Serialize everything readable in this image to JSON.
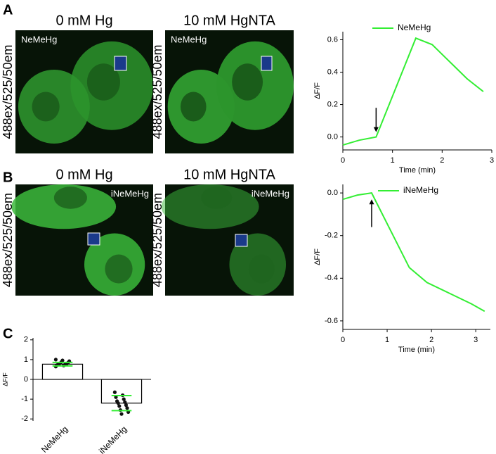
{
  "panels": [
    {
      "letter": "A",
      "images": [
        {
          "title": "0 mM Hg",
          "channel": "488ex/525/50em",
          "tag": "NeMeHg"
        },
        {
          "title": "10 mM HgNTA",
          "channel": "488ex/525/50em",
          "tag": "NeMeHg"
        }
      ]
    },
    {
      "letter": "B",
      "images": [
        {
          "title": "0 mM Hg",
          "channel": "488ex/525/50em",
          "tag": "iNeMeHg"
        },
        {
          "title": "10 mM HgNTA",
          "channel": "488ex/525/50em",
          "tag": "iNeMeHg"
        }
      ]
    },
    {
      "letter": "C"
    }
  ],
  "chart_data": [
    {
      "type": "line",
      "x": [
        0,
        0.33,
        0.67,
        1.47,
        1.8,
        2.2,
        2.5,
        2.83
      ],
      "series": [
        {
          "name": "NeMeHg",
          "color": "#33ee33",
          "values": [
            -0.05,
            -0.02,
            0.0,
            0.61,
            0.57,
            0.45,
            0.36,
            0.28
          ]
        }
      ],
      "xlabel": "Time (min)",
      "ylabel": "ΔF/F",
      "xlim": [
        0,
        3
      ],
      "ylim": [
        -0.08,
        0.65
      ],
      "xticks": [
        0,
        1,
        2,
        3
      ],
      "yticks": [
        {
          "value": 0,
          "label": "0.0"
        },
        0.2,
        0.4,
        0.6
      ],
      "arrow": {
        "x": 0.67,
        "from": 0.18,
        "to": 0.03
      }
    },
    {
      "type": "line",
      "x": [
        0,
        0.33,
        0.65,
        1.5,
        1.9,
        2.4,
        2.9,
        3.2
      ],
      "series": [
        {
          "name": "iNeMeHg",
          "color": "#33ee33",
          "values": [
            -0.03,
            -0.01,
            0.0,
            -0.35,
            -0.42,
            -0.47,
            -0.52,
            -0.555
          ]
        }
      ],
      "xlabel": "Time (min)",
      "ylabel": "ΔF/F",
      "xlim": [
        0,
        3.33
      ],
      "ylim": [
        -0.64,
        0.04
      ],
      "xticks": [
        0,
        1,
        2,
        3
      ],
      "yticks": [
        {
          "value": 0,
          "label": "0.0"
        },
        -0.2,
        -0.4,
        -0.6
      ],
      "arrow": {
        "x": 0.65,
        "from": -0.16,
        "to": -0.03
      }
    },
    {
      "type": "bar",
      "categories": [
        "NeMeHg",
        "iNeMeHg"
      ],
      "values": [
        0.77,
        -1.2
      ],
      "errors": [
        0.09,
        0.38
      ],
      "points": [
        [
          0.65,
          0.7,
          0.72,
          0.74,
          0.75,
          0.77,
          0.78,
          0.8,
          0.82,
          0.85,
          0.88,
          0.92,
          0.96,
          1.0
        ],
        [
          -0.65,
          -0.8,
          -0.9,
          -1.0,
          -1.1,
          -1.15,
          -1.2,
          -1.3,
          -1.35,
          -1.45,
          -1.55,
          -1.65,
          -1.75
        ]
      ],
      "color": "#ffffff",
      "point_color": "#111111",
      "error_color": "#33ee33",
      "ylabel": "ΔF/F",
      "ylim": [
        -2.1,
        2.1
      ],
      "yticks": [
        -2,
        -1,
        0,
        1,
        2
      ]
    }
  ]
}
